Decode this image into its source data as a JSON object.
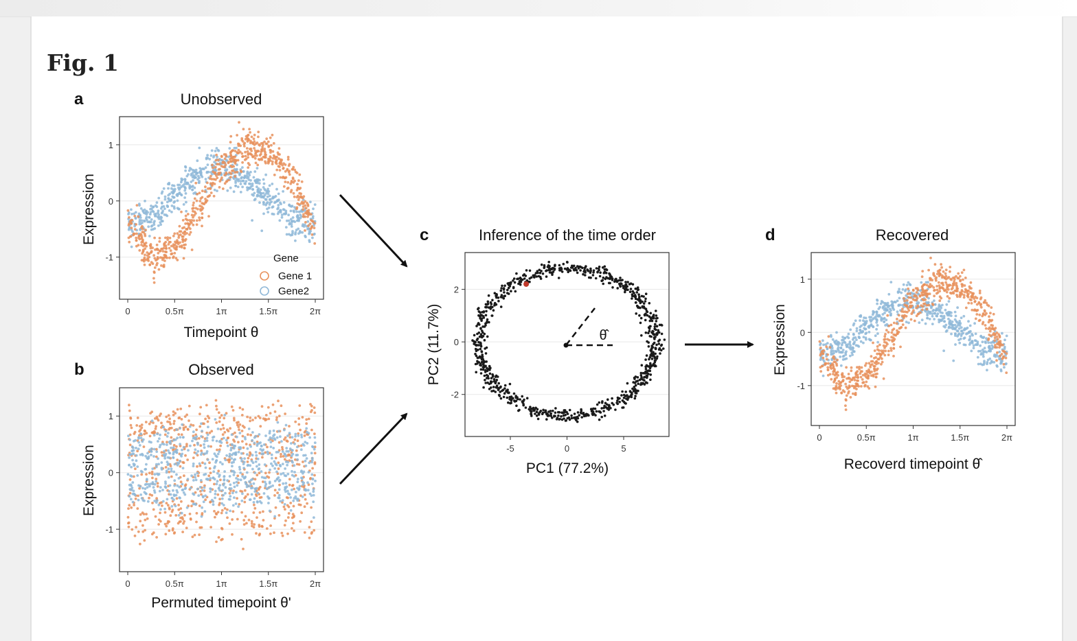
{
  "figure_label": "Fig. 1",
  "colors": {
    "gene1": "#e8915c",
    "gene2": "#8fb8d8",
    "points": "#1a1a1a",
    "highlight": "#c0392b"
  },
  "panels": {
    "a": {
      "letter": "a",
      "title": "Unobserved",
      "xlabel": "Timepoint θ",
      "ylabel": "Expression",
      "legend_title": "Gene",
      "legend_items": [
        "Gene 1",
        "Gene2"
      ]
    },
    "b": {
      "letter": "b",
      "title": "Observed",
      "xlabel": "Permuted timepoint θ'",
      "ylabel": "Expression"
    },
    "c": {
      "letter": "c",
      "title": "Inference of the time order",
      "xlabel": "PC1 (77.2%)",
      "ylabel": "PC2 (11.7%)",
      "angle_label": "θ̂"
    },
    "d": {
      "letter": "d",
      "title": "Recovered",
      "xlabel": "Recoverd timepoint θ̂",
      "ylabel": "Expression"
    }
  },
  "chart_data": [
    {
      "panel": "a",
      "type": "scatter",
      "title": "Unobserved",
      "xlabel": "Timepoint θ",
      "ylabel": "Expression",
      "xlim": [
        0,
        6.2832
      ],
      "ylim": [
        -1.75,
        1.5
      ],
      "xticks": [
        0,
        1.5708,
        3.1416,
        4.7124,
        6.2832
      ],
      "xtick_labels": [
        "0",
        "0.5π",
        "1π",
        "1.5π",
        "2π"
      ],
      "yticks": [
        -1,
        0,
        1
      ],
      "ytick_labels": [
        "-1",
        "0",
        "1"
      ],
      "legend_title": "Gene",
      "legend_position": "bottom-right",
      "series": [
        {
          "name": "Gene 1",
          "trend": "y ≈ -cos(x - π/6)",
          "color": "#e8915c",
          "x": [
            0,
            0.7854,
            1.5708,
            2.3562,
            3.1416,
            3.927,
            4.7124,
            5.4978,
            6.2832
          ],
          "y": [
            -0.45,
            -0.98,
            -0.82,
            -0.15,
            0.55,
            0.95,
            0.88,
            0.35,
            -0.42
          ]
        },
        {
          "name": "Gene2",
          "trend": "y ≈ -0.65·cos(x - 0.33π) + noise",
          "color": "#8fb8d8",
          "x": [
            0,
            0.7854,
            1.5708,
            2.3562,
            3.1416,
            3.927,
            4.7124,
            5.4978,
            6.2832
          ],
          "y": [
            -0.38,
            -0.3,
            0.12,
            0.5,
            0.62,
            0.4,
            0.05,
            -0.33,
            -0.4
          ]
        }
      ]
    },
    {
      "panel": "b",
      "type": "scatter",
      "title": "Observed",
      "xlabel": "Permuted timepoint θ'",
      "ylabel": "Expression",
      "xlim": [
        0,
        6.2832
      ],
      "ylim": [
        -1.75,
        1.5
      ],
      "xticks": [
        0,
        1.5708,
        3.1416,
        4.7124,
        6.2832
      ],
      "xtick_labels": [
        "0",
        "0.5π",
        "1π",
        "1.5π",
        "2π"
      ],
      "yticks": [
        -1,
        0,
        1
      ],
      "ytick_labels": [
        "-1",
        "0",
        "1"
      ],
      "series": [
        {
          "name": "Gene 1",
          "color": "#e8915c",
          "distribution": "uniform over x, y spans -1.0 to 1.0 (bimodal at extremes)"
        },
        {
          "name": "Gene2",
          "color": "#8fb8d8",
          "distribution": "uniform over x, y spans -0.6 to 0.7"
        }
      ]
    },
    {
      "panel": "c",
      "type": "scatter",
      "title": "Inference of the time order",
      "xlabel": "PC1 (77.2%)",
      "ylabel": "PC2 (11.7%)",
      "xlim": [
        -9,
        9
      ],
      "ylim": [
        -3.6,
        3.4
      ],
      "xticks": [
        -5,
        0,
        5
      ],
      "xtick_labels": [
        "-5",
        "0",
        "5"
      ],
      "yticks": [
        -2,
        0,
        2
      ],
      "ytick_labels": [
        "-2",
        "0",
        "2"
      ],
      "shape": "ellipse centered at (0,0), semi-axes ≈ 7.8 (PC1) × 2.8 (PC2)",
      "highlight_point": {
        "x": -3.6,
        "y": 2.2
      },
      "angle_annotation": "θ̂"
    },
    {
      "panel": "d",
      "type": "scatter",
      "title": "Recovered",
      "xlabel": "Recoverd timepoint θ̂",
      "ylabel": "Expression",
      "xlim": [
        0,
        6.2832
      ],
      "ylim": [
        -1.75,
        1.5
      ],
      "xticks": [
        0,
        1.5708,
        3.1416,
        4.7124,
        6.2832
      ],
      "xtick_labels": [
        "0",
        "0.5π",
        "1π",
        "1.5π",
        "2π"
      ],
      "yticks": [
        -1,
        0,
        1
      ],
      "ytick_labels": [
        "-1",
        "0",
        "1"
      ],
      "series": [
        {
          "name": "Gene 1",
          "color": "#e8915c",
          "x": [
            0,
            0.7854,
            1.5708,
            2.3562,
            3.1416,
            3.927,
            4.7124,
            5.4978,
            6.2832
          ],
          "y": [
            -0.45,
            -0.98,
            -0.82,
            -0.15,
            0.55,
            0.95,
            0.88,
            0.35,
            -0.42
          ]
        },
        {
          "name": "Gene2",
          "color": "#8fb8d8",
          "x": [
            0,
            0.7854,
            1.5708,
            2.3562,
            3.1416,
            3.927,
            4.7124,
            5.4978,
            6.2832
          ],
          "y": [
            -0.38,
            -0.3,
            0.12,
            0.5,
            0.62,
            0.4,
            0.05,
            -0.33,
            -0.4
          ]
        }
      ]
    }
  ]
}
